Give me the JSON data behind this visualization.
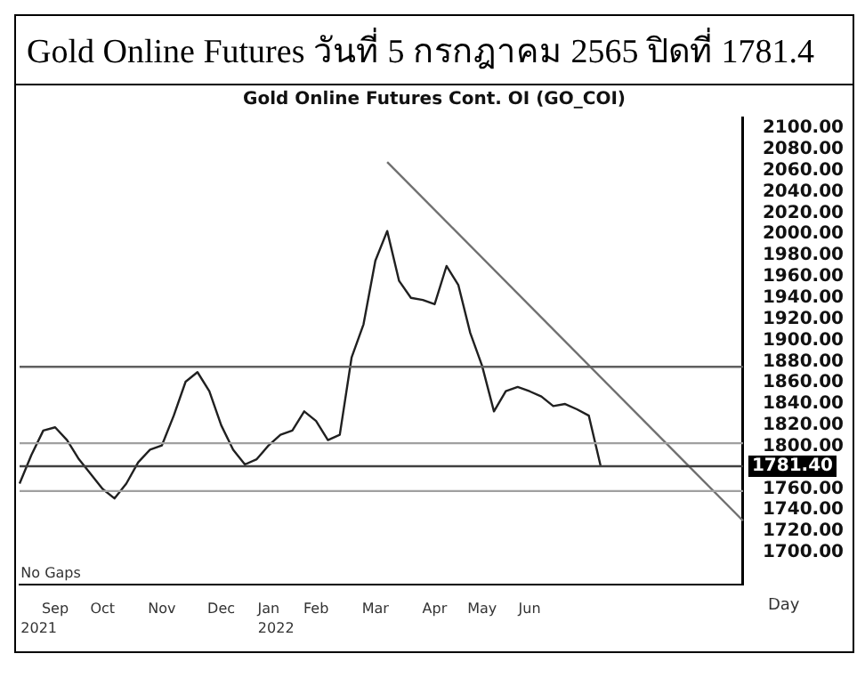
{
  "chart_data": {
    "type": "line",
    "title": "Gold Online Futures วันที่ 5 กรกฎาคม 2565 ปิดที่ 1781.4",
    "subtitle": "Gold Online Futures Cont. OI (GO_COI)",
    "categories": [
      null,
      null,
      null,
      "Sep",
      null,
      null,
      null,
      "Oct",
      null,
      null,
      null,
      null,
      "Nov",
      null,
      null,
      null,
      null,
      "Dec",
      null,
      null,
      null,
      "Jan",
      null,
      null,
      null,
      "Feb",
      null,
      null,
      null,
      null,
      "Mar",
      null,
      null,
      null,
      null,
      "Apr",
      null,
      null,
      null,
      "May",
      null,
      null,
      null,
      "Jun",
      null,
      null,
      null,
      null,
      null,
      null,
      null,
      null,
      null,
      null,
      null,
      null,
      null,
      null,
      null,
      null,
      null,
      null
    ],
    "series": [
      {
        "color": "#202020",
        "values": [
          1765,
          1792,
          1815,
          1818,
          1806,
          1788,
          1774,
          1760,
          1751,
          1765,
          1785,
          1797,
          1801,
          1829,
          1861,
          1870,
          1852,
          1820,
          1797,
          1783,
          1788,
          1801,
          1811,
          1815,
          1833,
          1824,
          1806,
          1811,
          1884,
          1915,
          1975,
          2003,
          1956,
          1940,
          1938,
          1934,
          1970,
          1952,
          1907,
          1876,
          1833,
          1852,
          1856,
          1852,
          1847,
          1838,
          1840,
          1835,
          1829,
          1781.4,
          null,
          null,
          null,
          null,
          null,
          null,
          null,
          null,
          null,
          null,
          null,
          null
        ]
      },
      {
        "color": "#707070",
        "values": [
          null,
          null,
          null,
          null,
          null,
          null,
          null,
          null,
          null,
          null,
          null,
          null,
          null,
          null,
          null,
          null,
          null,
          null,
          null,
          null,
          null,
          null,
          null,
          null,
          null,
          null,
          null,
          null,
          null,
          null,
          null,
          2068,
          null,
          null,
          null,
          null,
          null,
          null,
          null,
          null,
          null,
          null,
          null,
          null,
          null,
          null,
          null,
          null,
          null,
          null,
          null,
          null,
          null,
          null,
          null,
          null,
          null,
          null,
          null,
          null,
          null,
          1730
        ]
      }
    ],
    "ylim": [
      1670,
      2110
    ],
    "yticks": [
      {
        "value": 1700,
        "label": "1700.00"
      },
      {
        "value": 1720,
        "label": "1720.00"
      },
      {
        "value": 1740,
        "label": "1740.00"
      },
      {
        "value": 1760,
        "label": "1760.00"
      },
      {
        "value": 1800,
        "label": "1800.00"
      },
      {
        "value": 1820,
        "label": "1820.00"
      },
      {
        "value": 1840,
        "label": "1840.00"
      },
      {
        "value": 1860,
        "label": "1860.00"
      },
      {
        "value": 1880,
        "label": "1880.00"
      },
      {
        "value": 1900,
        "label": "1900.00"
      },
      {
        "value": 1920,
        "label": "1920.00"
      },
      {
        "value": 1940,
        "label": "1940.00"
      },
      {
        "value": 1960,
        "label": "1960.00"
      },
      {
        "value": 1980,
        "label": "1980.00"
      },
      {
        "value": 2000,
        "label": "2000.00"
      },
      {
        "value": 2020,
        "label": "2020.00"
      },
      {
        "value": 2040,
        "label": "2040.00"
      },
      {
        "value": 2060,
        "label": "2060.00"
      },
      {
        "value": 2080,
        "label": "2080.00"
      },
      {
        "value": 2100,
        "label": "2100.00"
      }
    ],
    "ref_lines": [
      {
        "axis": "y",
        "value": 1875,
        "color": "#606060"
      },
      {
        "axis": "y",
        "value": 1803,
        "color": "#a0a0a0"
      },
      {
        "axis": "y",
        "value": 1781.4,
        "label": "1781.40",
        "color": "#404040"
      },
      {
        "axis": "y",
        "value": 1758,
        "color": "#a0a0a0"
      }
    ],
    "annotations": [
      "No Gaps",
      "2021",
      "2022",
      "Day"
    ],
    "grid": false,
    "legend": false,
    "marker": "none",
    "line_style": "solid"
  }
}
